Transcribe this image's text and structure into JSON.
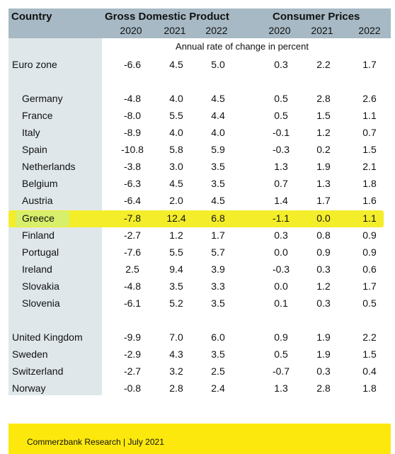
{
  "header": {
    "country_label": "Country",
    "gdp_label": "Gross Domestic Product",
    "cpi_label": "Consumer Prices",
    "gdp_years": [
      "2020",
      "2021",
      "2022"
    ],
    "cpi_years": [
      "2020",
      "2021",
      "2022"
    ]
  },
  "subheader": "Annual rate of change in percent",
  "rows": [
    {
      "country": "Euro zone",
      "gdp": [
        "-6.6",
        "4.5",
        "5.0"
      ],
      "cpi": [
        "0.3",
        "2.2",
        "1.7"
      ]
    },
    {
      "country": "Germany",
      "gdp": [
        "-4.8",
        "4.0",
        "4.5"
      ],
      "cpi": [
        "0.5",
        "2.8",
        "2.6"
      ]
    },
    {
      "country": "France",
      "gdp": [
        "-8.0",
        "5.5",
        "4.4"
      ],
      "cpi": [
        "0.5",
        "1.5",
        "1.1"
      ]
    },
    {
      "country": "Italy",
      "gdp": [
        "-8.9",
        "4.0",
        "4.0"
      ],
      "cpi": [
        "-0.1",
        "1.2",
        "0.7"
      ]
    },
    {
      "country": "Spain",
      "gdp": [
        "-10.8",
        "5.8",
        "5.9"
      ],
      "cpi": [
        "-0.3",
        "0.2",
        "1.5"
      ]
    },
    {
      "country": "Netherlands",
      "gdp": [
        "-3.8",
        "3.0",
        "3.5"
      ],
      "cpi": [
        "1.3",
        "1.9",
        "2.1"
      ]
    },
    {
      "country": "Belgium",
      "gdp": [
        "-6.3",
        "4.5",
        "3.5"
      ],
      "cpi": [
        "0.7",
        "1.3",
        "1.8"
      ]
    },
    {
      "country": "Austria",
      "gdp": [
        "-6.4",
        "2.0",
        "4.5"
      ],
      "cpi": [
        "1.4",
        "1.7",
        "1.6"
      ]
    },
    {
      "country": "Greece",
      "gdp": [
        "-7.8",
        "12.4",
        "6.8"
      ],
      "cpi": [
        "-1.1",
        "0.0",
        "1.1"
      ]
    },
    {
      "country": "Finland",
      "gdp": [
        "-2.7",
        "1.2",
        "1.7"
      ],
      "cpi": [
        "0.3",
        "0.8",
        "0.9"
      ]
    },
    {
      "country": "Portugal",
      "gdp": [
        "-7.6",
        "5.5",
        "5.7"
      ],
      "cpi": [
        "0.0",
        "0.9",
        "0.9"
      ]
    },
    {
      "country": "Ireland",
      "gdp": [
        "2.5",
        "9.4",
        "3.9"
      ],
      "cpi": [
        "-0.3",
        "0.3",
        "0.6"
      ]
    },
    {
      "country": "Slovakia",
      "gdp": [
        "-4.8",
        "3.5",
        "3.3"
      ],
      "cpi": [
        "0.0",
        "1.2",
        "1.7"
      ]
    },
    {
      "country": "Slovenia",
      "gdp": [
        "-6.1",
        "5.2",
        "3.5"
      ],
      "cpi": [
        "0.1",
        "0.3",
        "0.5"
      ]
    },
    {
      "country": "United Kingdom",
      "gdp": [
        "-9.9",
        "7.0",
        "6.0"
      ],
      "cpi": [
        "0.9",
        "1.9",
        "2.2"
      ]
    },
    {
      "country": "Sweden",
      "gdp": [
        "-2.9",
        "4.3",
        "3.5"
      ],
      "cpi": [
        "0.5",
        "1.9",
        "1.5"
      ]
    },
    {
      "country": "Switzerland",
      "gdp": [
        "-2.7",
        "3.2",
        "2.5"
      ],
      "cpi": [
        "-0.7",
        "0.3",
        "0.4"
      ]
    },
    {
      "country": "Norway",
      "gdp": [
        "-0.8",
        "2.8",
        "2.4"
      ],
      "cpi": [
        "1.3",
        "2.8",
        "1.8"
      ]
    }
  ],
  "footer": "Commerzbank Research  |  July 2021",
  "colors": {
    "header_bg": "#a6b9c4",
    "country_col_bg": "#dfe7ea",
    "highlight": "#f4ee2a",
    "footer_bg": "#fde80e"
  }
}
